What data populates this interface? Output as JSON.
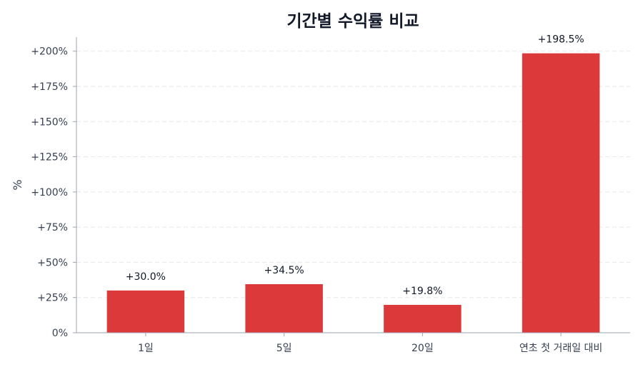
{
  "chart_data": {
    "type": "bar",
    "title": "기간별 수익률 비교",
    "ylabel": "%",
    "xlabel": "",
    "categories": [
      "1일",
      "5일",
      "20일",
      "연초 첫 거래일 대비"
    ],
    "values": [
      30.0,
      34.5,
      19.8,
      198.5
    ],
    "value_labels": [
      "+30.0%",
      "+34.5%",
      "+19.8%",
      "+198.5%"
    ],
    "ylim": [
      0,
      210
    ],
    "yticks": [
      0,
      25,
      50,
      75,
      100,
      125,
      150,
      175,
      200
    ],
    "ytick_labels": [
      "0%",
      "+25%",
      "+50%",
      "+75%",
      "+100%",
      "+125%",
      "+150%",
      "+175%",
      "+200%"
    ],
    "bar_color": "#dc3a3a",
    "grid": true,
    "legend": "none"
  }
}
